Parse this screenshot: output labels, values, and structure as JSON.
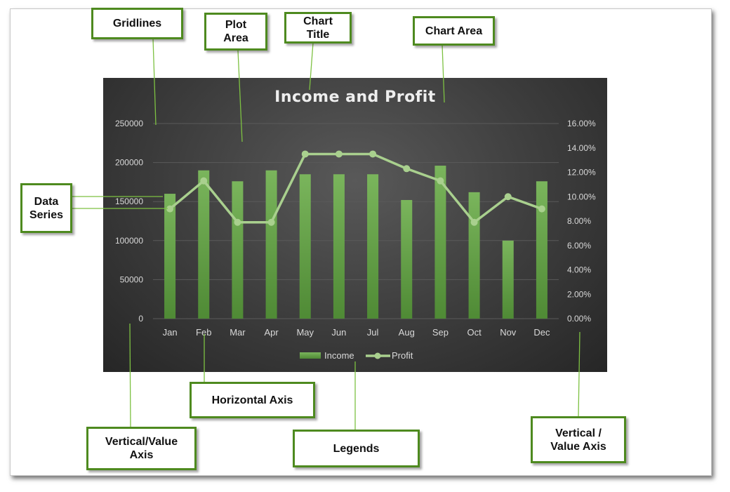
{
  "chart_data": {
    "type": "bar",
    "title": "Income and Profit",
    "categories": [
      "Jan",
      "Feb",
      "Mar",
      "Apr",
      "May",
      "Jun",
      "Jul",
      "Aug",
      "Sep",
      "Oct",
      "Nov",
      "Dec"
    ],
    "series": [
      {
        "name": "Income",
        "type": "bar",
        "axis": "left",
        "values": [
          160000,
          190000,
          176000,
          190000,
          185000,
          185000,
          185000,
          152000,
          196000,
          162000,
          100000,
          176000
        ]
      },
      {
        "name": "Profit",
        "type": "line",
        "axis": "right",
        "values": [
          0.09,
          0.113,
          0.079,
          0.079,
          0.135,
          0.135,
          0.135,
          0.123,
          0.113,
          0.079,
          0.1,
          0.09
        ]
      }
    ],
    "y_left": {
      "min": 0,
      "max": 250000,
      "step": 50000,
      "ticks": [
        "0",
        "50000",
        "100000",
        "150000",
        "200000",
        "250000"
      ]
    },
    "y_right": {
      "min": 0,
      "max": 0.16,
      "step": 0.02,
      "ticks": [
        "0.00%",
        "2.00%",
        "4.00%",
        "6.00%",
        "8.00%",
        "10.00%",
        "12.00%",
        "14.00%",
        "16.00%"
      ]
    },
    "grid": true,
    "legend_position": "bottom",
    "colors": {
      "bar": "#6aa84f",
      "line": "#a9d08e",
      "background": "#404040",
      "text": "#d9d9d9",
      "grid": "#5a5a5a"
    }
  },
  "callouts": {
    "gridlines": "Gridlines",
    "plot_area": "Plot\nArea",
    "chart_title": "Chart\nTitle",
    "chart_area": "Chart Area",
    "data_series": "Data\nSeries",
    "horizontal_axis": "Horizontal Axis",
    "vertical_value_axis": "Vertical/Value\nAxis",
    "legends": "Legends",
    "vertical_value_axis_right": "Vertical /\nValue Axis"
  },
  "callout_color": "#4e8a1f"
}
